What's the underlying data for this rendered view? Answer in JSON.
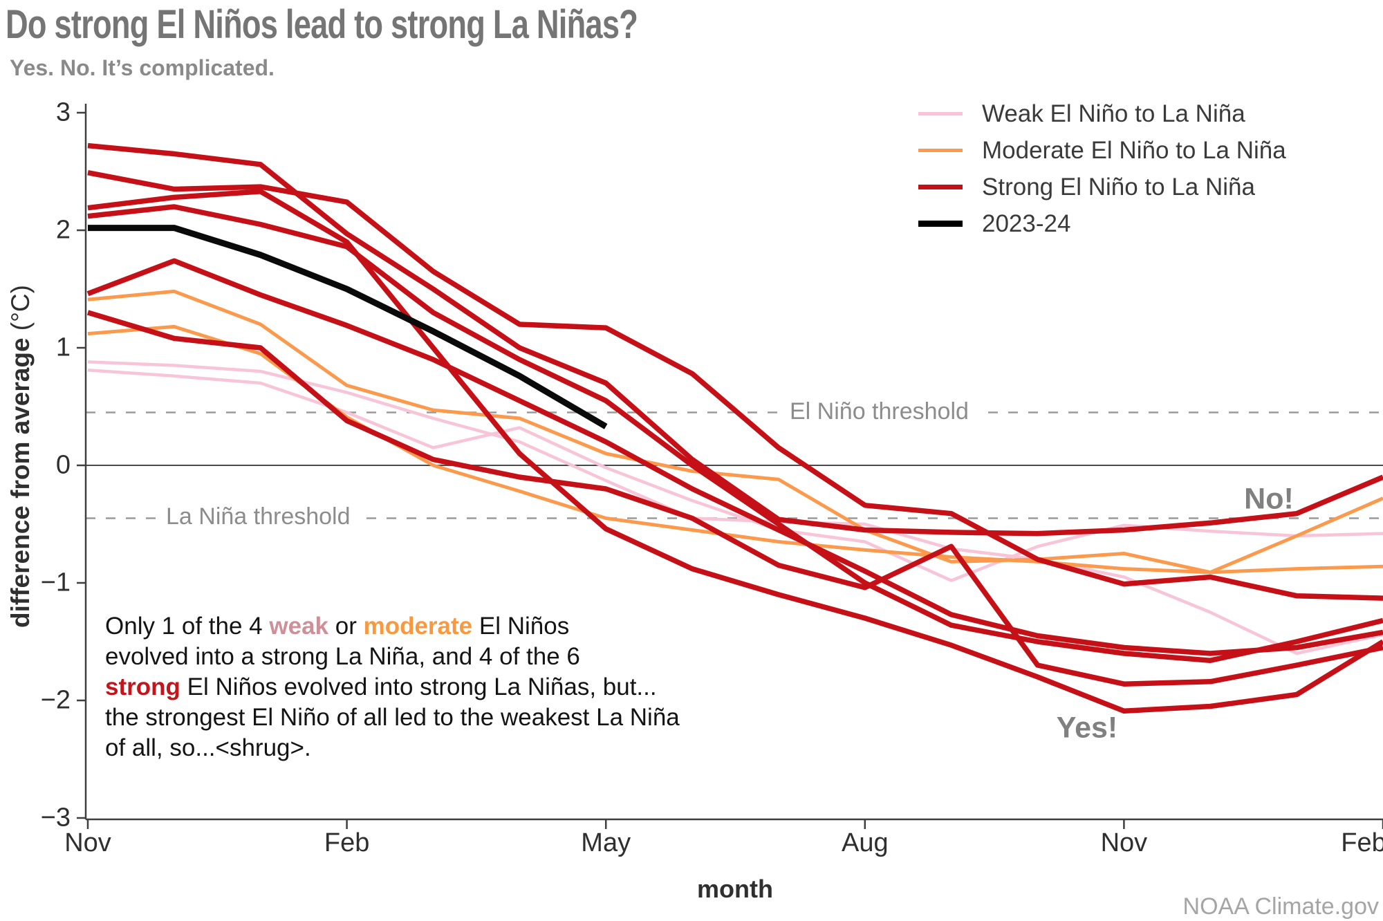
{
  "header": {
    "title": "Do strong El Niños lead to strong La Niñas?",
    "subtitle": "Yes. No. It’s complicated."
  },
  "legend": {
    "items": [
      {
        "label": "Weak El Niño to La Niña",
        "color": "#f8c5d8",
        "thickness": 5
      },
      {
        "label": "Moderate El Niño to La Niña",
        "color": "#fb9a4d",
        "thickness": 5
      },
      {
        "label": "Strong El Niño to La Niña",
        "color": "#c41016",
        "thickness": 7
      },
      {
        "label": "2023-24",
        "color": "#000000",
        "thickness": 9
      }
    ]
  },
  "annotations": {
    "no_label": "No!",
    "yes_label": "Yes!",
    "el_nino_threshold_label": "El Niño threshold",
    "la_nina_threshold_label": "La Niña threshold",
    "credit": "NOAA Climate.gov",
    "paragraph_segments": [
      {
        "text": "Only 1 of the 4 ",
        "class": "p"
      },
      {
        "text": "weak",
        "class": "w"
      },
      {
        "text": " or ",
        "class": "p"
      },
      {
        "text": "moderate",
        "class": "m"
      },
      {
        "text": " El Niños\nevolved into a strong La Niña, and 4 of the 6\n",
        "class": "p"
      },
      {
        "text": "strong",
        "class": "s"
      },
      {
        "text": " El Niños evolved into strong La Niñas, but...\nthe strongest El Niño of all led to the weakest La Niña\nof all, so...<shrug>.",
        "class": "p"
      }
    ]
  },
  "axes": {
    "y_label_bold": "difference from average",
    "y_label_unit": " (°C)",
    "x_label": "month",
    "y_ticks": [
      3,
      2,
      1,
      0,
      -1,
      -2,
      -3
    ],
    "y_tick_labels": [
      "3",
      "2",
      "1",
      "0",
      "−1",
      "−2",
      "−3"
    ],
    "x_tick_months": [
      0,
      3,
      6,
      9,
      12,
      15
    ],
    "x_tick_labels": [
      "Nov",
      "Feb",
      "May",
      "Aug",
      "Nov",
      "Feb"
    ]
  },
  "chart_data": {
    "type": "line",
    "title": "Do strong El Niños lead to strong La Niñas?",
    "xlabel": "month",
    "ylabel": "difference from average (°C)",
    "ylim": [
      -3,
      3
    ],
    "grid": false,
    "legend_position": "top-right",
    "x_months": [
      "Nov",
      "Dec",
      "Jan",
      "Feb",
      "Mar",
      "Apr",
      "May",
      "Jun",
      "Jul",
      "Aug",
      "Sep",
      "Oct",
      "Nov",
      "Dec",
      "Jan",
      "Feb"
    ],
    "thresholds": [
      {
        "name": "El Niño threshold",
        "value": 0.45
      },
      {
        "name": "La Niña threshold",
        "value": -0.45
      }
    ],
    "zero_line": 0,
    "series": [
      {
        "name": "weak-1",
        "group": "Weak El Niño to La Niña",
        "color": "#f8c5d8",
        "width": 4.5,
        "values": [
          0.88,
          0.85,
          0.8,
          0.62,
          0.4,
          0.2,
          -0.13,
          -0.45,
          -0.48,
          -0.5,
          -0.71,
          -0.8,
          -0.95,
          -1.25,
          -1.6,
          -1.44
        ]
      },
      {
        "name": "weak-2",
        "group": "Weak El Niño to La Niña",
        "color": "#f8c5d8",
        "width": 4.5,
        "values": [
          0.81,
          0.76,
          0.7,
          0.45,
          0.15,
          0.32,
          -0.02,
          -0.3,
          -0.55,
          -0.65,
          -0.98,
          -0.69,
          -0.51,
          -0.56,
          -0.6,
          -0.58
        ]
      },
      {
        "name": "moderate-1",
        "group": "Moderate El Niño to La Niña",
        "color": "#fb9a4d",
        "width": 5,
        "values": [
          1.41,
          1.48,
          1.2,
          0.68,
          0.47,
          0.4,
          0.1,
          -0.05,
          -0.12,
          -0.55,
          -0.82,
          -0.8,
          -0.75,
          -0.91,
          -0.6,
          -0.28
        ]
      },
      {
        "name": "moderate-2",
        "group": "Moderate El Niño to La Niña",
        "color": "#fb9a4d",
        "width": 5,
        "values": [
          1.12,
          1.18,
          0.95,
          0.41,
          0.0,
          -0.22,
          -0.45,
          -0.55,
          -0.65,
          -0.72,
          -0.78,
          -0.82,
          -0.88,
          -0.91,
          -0.88,
          -0.86
        ]
      },
      {
        "name": "strong-1",
        "group": "Strong El Niño to La Niña",
        "color": "#c41016",
        "width": 7.5,
        "values": [
          2.72,
          2.65,
          2.56,
          1.97,
          1.5,
          1.0,
          0.7,
          0.05,
          -0.46,
          -0.55,
          -0.57,
          -0.58,
          -0.55,
          -0.49,
          -0.41,
          -0.1
        ]
      },
      {
        "name": "strong-2",
        "group": "Strong El Niño to La Niña",
        "color": "#c41016",
        "width": 7.5,
        "values": [
          2.49,
          2.35,
          2.37,
          2.24,
          1.65,
          1.2,
          1.17,
          0.78,
          0.15,
          -0.34,
          -0.41,
          -0.8,
          -1.01,
          -0.95,
          -1.11,
          -1.13
        ]
      },
      {
        "name": "strong-3",
        "group": "Strong El Niño to La Niña",
        "color": "#c41016",
        "width": 7.5,
        "values": [
          2.19,
          2.28,
          2.33,
          1.9,
          1.0,
          0.1,
          -0.54,
          -0.88,
          -1.1,
          -1.3,
          -1.53,
          -1.8,
          -2.09,
          -2.05,
          -1.95,
          -1.5
        ]
      },
      {
        "name": "strong-4",
        "group": "Strong El Niño to La Niña",
        "color": "#c41016",
        "width": 7.5,
        "values": [
          2.12,
          2.2,
          2.05,
          1.86,
          1.3,
          0.9,
          0.55,
          0.0,
          -0.5,
          -1.0,
          -1.36,
          -1.5,
          -1.6,
          -1.66,
          -1.5,
          -1.32
        ]
      },
      {
        "name": "strong-5",
        "group": "Strong El Niño to La Niña",
        "color": "#c41016",
        "width": 7.5,
        "values": [
          1.46,
          1.74,
          1.45,
          1.19,
          0.9,
          0.55,
          0.2,
          -0.2,
          -0.55,
          -0.9,
          -1.27,
          -1.45,
          -1.55,
          -1.6,
          -1.55,
          -1.42
        ]
      },
      {
        "name": "strong-6",
        "group": "Strong El Niño to La Niña",
        "color": "#c41016",
        "width": 7.5,
        "values": [
          1.3,
          1.08,
          1.0,
          0.38,
          0.05,
          -0.1,
          -0.2,
          -0.45,
          -0.85,
          -1.04,
          -0.69,
          -1.7,
          -1.86,
          -1.84,
          -1.7,
          -1.55
        ]
      },
      {
        "name": "2023-24",
        "group": "2023-24",
        "color": "#0a0a0a",
        "width": 9,
        "values": [
          2.02,
          2.02,
          1.79,
          1.5,
          1.14,
          0.76,
          0.33
        ]
      }
    ]
  },
  "colors": {
    "red": "#c41016",
    "orange": "#fb9a4d",
    "pink": "#f8c5d8",
    "black": "#0a0a0a",
    "axis": "#3f3f3f",
    "threshold_dash": "#9a9a9a",
    "zero_line": "#4a4a4a"
  }
}
